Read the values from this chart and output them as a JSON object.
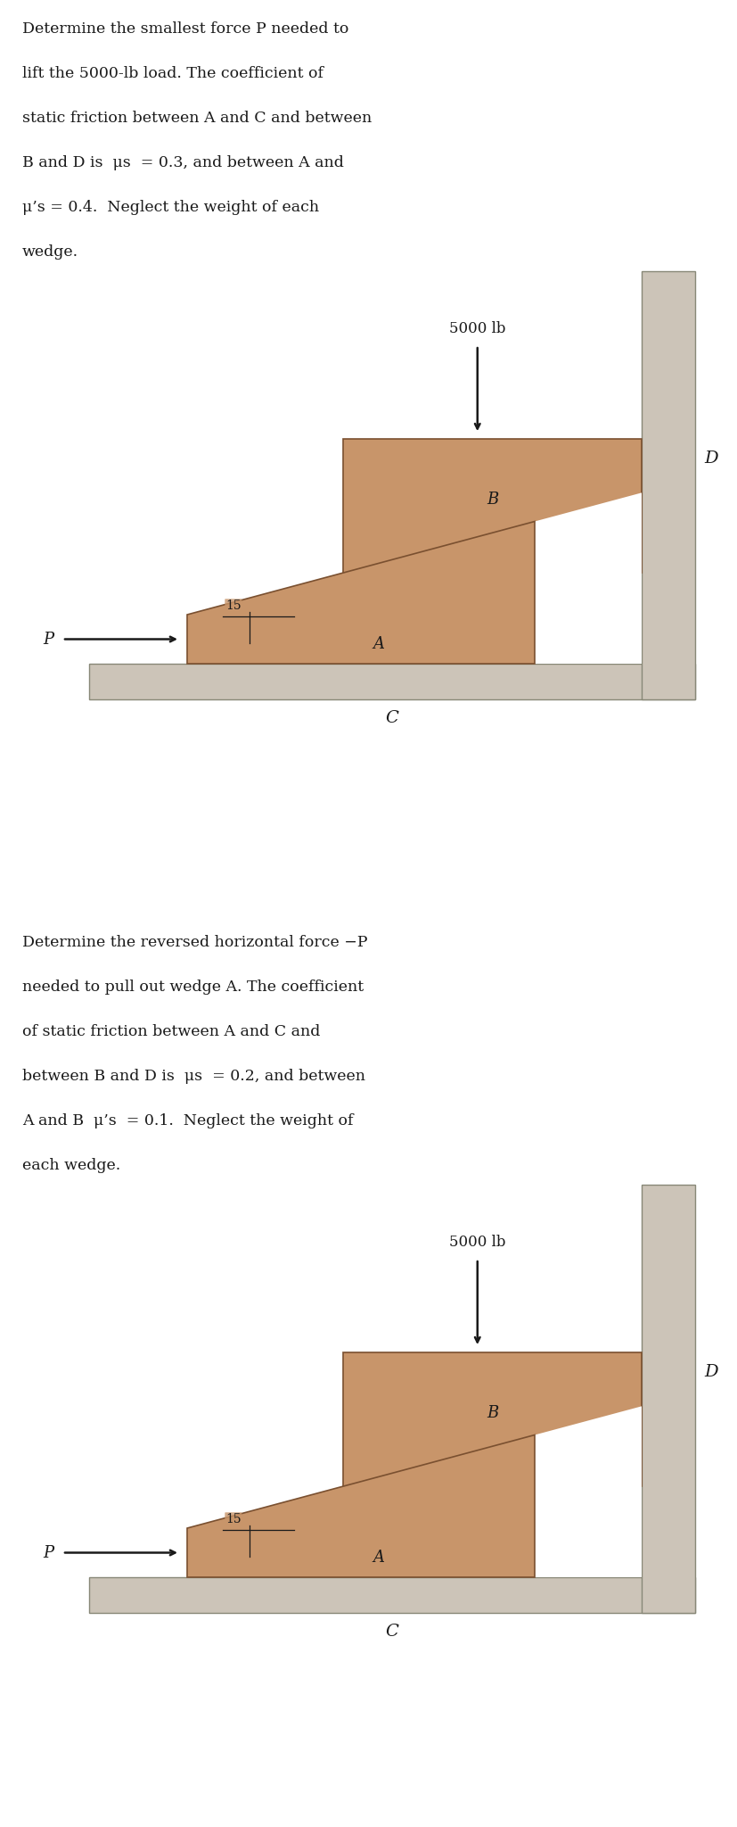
{
  "bg_color": "#ffffff",
  "wall_color": "#ccc4b8",
  "wedge_color": "#c8956a",
  "wedge_edge_color": "#7a5030",
  "floor_color": "#ccc4b8",
  "text_color": "#1a1a1a",
  "fig_width": 8.28,
  "fig_height": 20.48,
  "panel1": {
    "text_lines": [
      "Determine the smallest force P needed to",
      "lift the 5000-lb load. The coefficient of",
      "static friction between A and C and between",
      "B and D is  μs  = 0.3, and between A and",
      "μ’s = 0.4.  Neglect the weight of each",
      "wedge."
    ],
    "load_label": "5000 lb",
    "angle_label": "15",
    "label_A": "A",
    "label_B": "B",
    "label_C": "C",
    "label_D": "D",
    "label_P": "P"
  },
  "panel2": {
    "text_lines": [
      "Determine the reversed horizontal force −P",
      "needed to pull out wedge A. The coefficient",
      "of static friction between A and C and",
      "between B and D is  μs  = 0.2, and between",
      "A and B  μ’s  = 0.1.  Neglect the weight of",
      "each wedge."
    ],
    "load_label": "5000 lb",
    "angle_label": "15",
    "label_A": "A",
    "label_B": "B",
    "label_C": "C",
    "label_D": "D",
    "label_P": "P"
  }
}
